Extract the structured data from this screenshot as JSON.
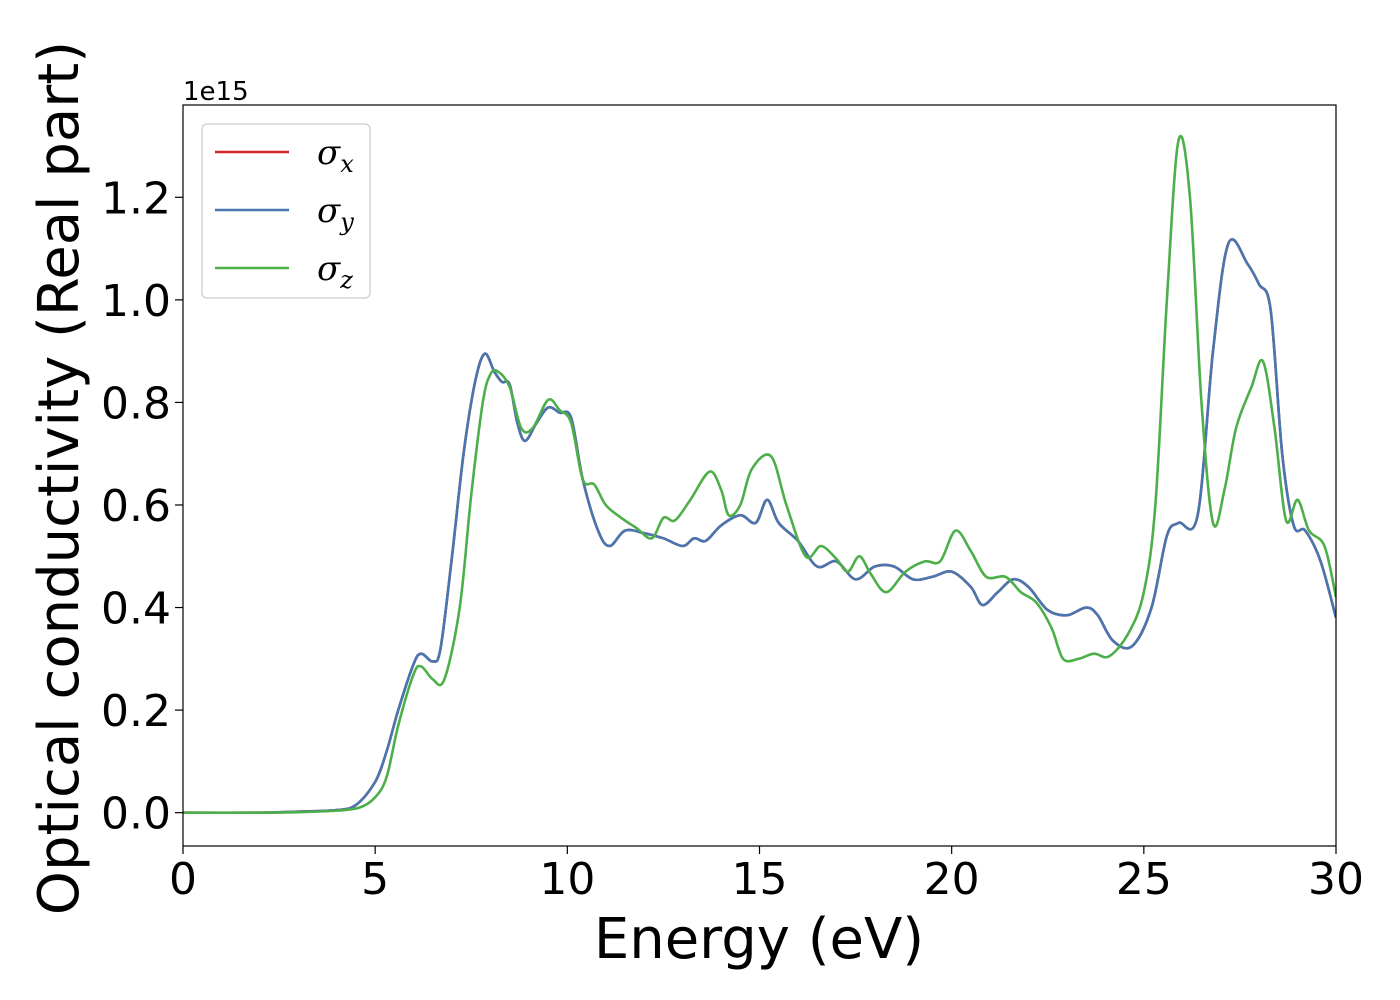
{
  "chart_data": {
    "type": "line",
    "xlabel": "Energy (eV)",
    "ylabel": "Optical conductivity (Real part)",
    "y_offset_label": "1e15",
    "xlim": [
      0,
      30
    ],
    "ylim": [
      -0.065,
      1.38
    ],
    "x_ticks": [
      0,
      5,
      10,
      15,
      20,
      25,
      30
    ],
    "y_ticks": [
      0.0,
      0.2,
      0.4,
      0.6,
      0.8,
      1.0,
      1.2
    ],
    "y_tick_labels": [
      "0.0",
      "0.2",
      "0.4",
      "0.6",
      "0.8",
      "1.0",
      "1.2"
    ],
    "grid": false,
    "legend_position": "top-left",
    "series": [
      {
        "name": "σ",
        "sub": "x",
        "color": "#d62728",
        "points": [
          [
            0,
            0
          ],
          [
            2,
            0
          ],
          [
            3,
            0.002
          ],
          [
            4,
            0.005
          ],
          [
            4.5,
            0.015
          ],
          [
            5,
            0.06
          ],
          [
            5.3,
            0.12
          ],
          [
            5.6,
            0.2
          ],
          [
            6,
            0.29
          ],
          [
            6.2,
            0.31
          ],
          [
            6.5,
            0.295
          ],
          [
            6.7,
            0.32
          ],
          [
            7,
            0.5
          ],
          [
            7.3,
            0.7
          ],
          [
            7.6,
            0.84
          ],
          [
            7.85,
            0.895
          ],
          [
            8.1,
            0.86
          ],
          [
            8.3,
            0.84
          ],
          [
            8.5,
            0.835
          ],
          [
            8.7,
            0.76
          ],
          [
            8.9,
            0.725
          ],
          [
            9.2,
            0.76
          ],
          [
            9.5,
            0.79
          ],
          [
            9.8,
            0.78
          ],
          [
            10.1,
            0.77
          ],
          [
            10.4,
            0.65
          ],
          [
            10.8,
            0.55
          ],
          [
            11.1,
            0.52
          ],
          [
            11.5,
            0.55
          ],
          [
            12,
            0.545
          ],
          [
            12.5,
            0.535
          ],
          [
            13,
            0.52
          ],
          [
            13.3,
            0.535
          ],
          [
            13.6,
            0.53
          ],
          [
            14,
            0.56
          ],
          [
            14.5,
            0.58
          ],
          [
            14.9,
            0.565
          ],
          [
            15.2,
            0.61
          ],
          [
            15.5,
            0.565
          ],
          [
            16,
            0.53
          ],
          [
            16.5,
            0.48
          ],
          [
            17,
            0.49
          ],
          [
            17.5,
            0.455
          ],
          [
            18,
            0.48
          ],
          [
            18.5,
            0.48
          ],
          [
            19,
            0.455
          ],
          [
            19.5,
            0.46
          ],
          [
            20,
            0.47
          ],
          [
            20.5,
            0.44
          ],
          [
            20.8,
            0.405
          ],
          [
            21.2,
            0.43
          ],
          [
            21.6,
            0.455
          ],
          [
            22,
            0.44
          ],
          [
            22.5,
            0.395
          ],
          [
            23,
            0.385
          ],
          [
            23.5,
            0.4
          ],
          [
            23.8,
            0.385
          ],
          [
            24.2,
            0.335
          ],
          [
            24.7,
            0.325
          ],
          [
            25.2,
            0.4
          ],
          [
            25.6,
            0.54
          ],
          [
            25.9,
            0.565
          ],
          [
            26.4,
            0.58
          ],
          [
            26.8,
            0.9
          ],
          [
            27.2,
            1.11
          ],
          [
            27.7,
            1.07
          ],
          [
            28,
            1.03
          ],
          [
            28.3,
            0.98
          ],
          [
            28.6,
            0.7
          ],
          [
            28.9,
            0.56
          ],
          [
            29.2,
            0.55
          ],
          [
            29.6,
            0.49
          ],
          [
            30,
            0.38
          ]
        ]
      },
      {
        "name": "σ",
        "sub": "y",
        "color": "#4876b0",
        "points": [
          [
            0,
            0
          ],
          [
            2,
            0
          ],
          [
            3,
            0.002
          ],
          [
            4,
            0.005
          ],
          [
            4.5,
            0.015
          ],
          [
            5,
            0.06
          ],
          [
            5.3,
            0.12
          ],
          [
            5.6,
            0.2
          ],
          [
            6,
            0.29
          ],
          [
            6.2,
            0.31
          ],
          [
            6.5,
            0.295
          ],
          [
            6.7,
            0.32
          ],
          [
            7,
            0.5
          ],
          [
            7.3,
            0.7
          ],
          [
            7.6,
            0.84
          ],
          [
            7.85,
            0.895
          ],
          [
            8.1,
            0.86
          ],
          [
            8.3,
            0.84
          ],
          [
            8.5,
            0.835
          ],
          [
            8.7,
            0.76
          ],
          [
            8.9,
            0.725
          ],
          [
            9.2,
            0.76
          ],
          [
            9.5,
            0.79
          ],
          [
            9.8,
            0.78
          ],
          [
            10.1,
            0.77
          ],
          [
            10.4,
            0.65
          ],
          [
            10.8,
            0.55
          ],
          [
            11.1,
            0.52
          ],
          [
            11.5,
            0.55
          ],
          [
            12,
            0.545
          ],
          [
            12.5,
            0.535
          ],
          [
            13,
            0.52
          ],
          [
            13.3,
            0.535
          ],
          [
            13.6,
            0.53
          ],
          [
            14,
            0.56
          ],
          [
            14.5,
            0.58
          ],
          [
            14.9,
            0.565
          ],
          [
            15.2,
            0.61
          ],
          [
            15.5,
            0.565
          ],
          [
            16,
            0.53
          ],
          [
            16.5,
            0.48
          ],
          [
            17,
            0.49
          ],
          [
            17.5,
            0.455
          ],
          [
            18,
            0.48
          ],
          [
            18.5,
            0.48
          ],
          [
            19,
            0.455
          ],
          [
            19.5,
            0.46
          ],
          [
            20,
            0.47
          ],
          [
            20.5,
            0.44
          ],
          [
            20.8,
            0.405
          ],
          [
            21.2,
            0.43
          ],
          [
            21.6,
            0.455
          ],
          [
            22,
            0.44
          ],
          [
            22.5,
            0.395
          ],
          [
            23,
            0.385
          ],
          [
            23.5,
            0.4
          ],
          [
            23.8,
            0.385
          ],
          [
            24.2,
            0.335
          ],
          [
            24.7,
            0.325
          ],
          [
            25.2,
            0.4
          ],
          [
            25.6,
            0.54
          ],
          [
            25.9,
            0.565
          ],
          [
            26.4,
            0.58
          ],
          [
            26.8,
            0.9
          ],
          [
            27.2,
            1.11
          ],
          [
            27.7,
            1.07
          ],
          [
            28,
            1.03
          ],
          [
            28.3,
            0.98
          ],
          [
            28.6,
            0.7
          ],
          [
            28.9,
            0.56
          ],
          [
            29.2,
            0.55
          ],
          [
            29.6,
            0.49
          ],
          [
            30,
            0.38
          ]
        ]
      },
      {
        "name": "σ",
        "sub": "z",
        "color": "#4daf4a",
        "points": [
          [
            0,
            0
          ],
          [
            2,
            0
          ],
          [
            3,
            0.001
          ],
          [
            4,
            0.004
          ],
          [
            4.6,
            0.01
          ],
          [
            5,
            0.03
          ],
          [
            5.3,
            0.07
          ],
          [
            5.6,
            0.17
          ],
          [
            6,
            0.27
          ],
          [
            6.2,
            0.285
          ],
          [
            6.5,
            0.26
          ],
          [
            6.8,
            0.26
          ],
          [
            7.2,
            0.4
          ],
          [
            7.5,
            0.62
          ],
          [
            7.8,
            0.8
          ],
          [
            8,
            0.855
          ],
          [
            8.2,
            0.86
          ],
          [
            8.5,
            0.83
          ],
          [
            8.8,
            0.75
          ],
          [
            9.1,
            0.75
          ],
          [
            9.5,
            0.805
          ],
          [
            9.8,
            0.785
          ],
          [
            10.1,
            0.76
          ],
          [
            10.4,
            0.65
          ],
          [
            10.7,
            0.64
          ],
          [
            11,
            0.6
          ],
          [
            11.4,
            0.575
          ],
          [
            11.8,
            0.555
          ],
          [
            12.2,
            0.535
          ],
          [
            12.5,
            0.575
          ],
          [
            12.8,
            0.57
          ],
          [
            13.2,
            0.61
          ],
          [
            13.7,
            0.665
          ],
          [
            14,
            0.63
          ],
          [
            14.2,
            0.58
          ],
          [
            14.5,
            0.6
          ],
          [
            14.8,
            0.67
          ],
          [
            15.3,
            0.695
          ],
          [
            15.7,
            0.6
          ],
          [
            16.2,
            0.5
          ],
          [
            16.6,
            0.52
          ],
          [
            17,
            0.495
          ],
          [
            17.3,
            0.47
          ],
          [
            17.6,
            0.5
          ],
          [
            17.9,
            0.465
          ],
          [
            18.3,
            0.43
          ],
          [
            18.8,
            0.47
          ],
          [
            19.3,
            0.49
          ],
          [
            19.7,
            0.49
          ],
          [
            20.1,
            0.55
          ],
          [
            20.5,
            0.51
          ],
          [
            20.9,
            0.46
          ],
          [
            21.4,
            0.46
          ],
          [
            21.8,
            0.43
          ],
          [
            22.2,
            0.41
          ],
          [
            22.6,
            0.36
          ],
          [
            22.9,
            0.3
          ],
          [
            23.3,
            0.3
          ],
          [
            23.7,
            0.31
          ],
          [
            24.1,
            0.305
          ],
          [
            24.6,
            0.35
          ],
          [
            25,
            0.43
          ],
          [
            25.3,
            0.6
          ],
          [
            25.6,
            1.0
          ],
          [
            25.9,
            1.31
          ],
          [
            26.2,
            1.2
          ],
          [
            26.5,
            0.8
          ],
          [
            26.8,
            0.565
          ],
          [
            27.1,
            0.63
          ],
          [
            27.4,
            0.75
          ],
          [
            27.8,
            0.83
          ],
          [
            28.1,
            0.88
          ],
          [
            28.4,
            0.75
          ],
          [
            28.7,
            0.57
          ],
          [
            29,
            0.61
          ],
          [
            29.3,
            0.55
          ],
          [
            29.7,
            0.52
          ],
          [
            30,
            0.42
          ]
        ]
      }
    ]
  }
}
